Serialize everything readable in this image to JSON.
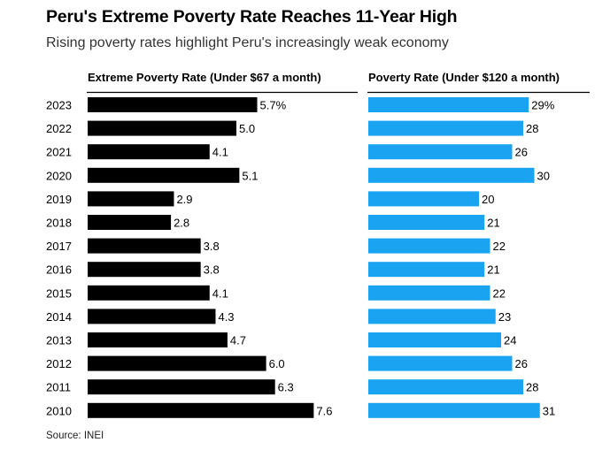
{
  "title": "Peru's Extreme Poverty Rate Reaches 11-Year High",
  "subtitle": "Rising poverty rates highlight Peru's increasingly weak economy",
  "source": "Source: INEI",
  "colors": {
    "extreme": "#000000",
    "poverty": "#1aa3f0",
    "rule": "#000000"
  },
  "chart_data": {
    "type": "bar",
    "orientation": "horizontal",
    "categories": [
      "2023",
      "2022",
      "2021",
      "2020",
      "2019",
      "2018",
      "2017",
      "2016",
      "2015",
      "2014",
      "2013",
      "2012",
      "2011",
      "2010"
    ],
    "series": [
      {
        "name": "Extreme Poverty Rate (Under $67 a month)",
        "values": [
          5.7,
          5.0,
          4.1,
          5.1,
          2.9,
          2.8,
          3.8,
          3.8,
          4.1,
          4.3,
          4.7,
          6.0,
          6.3,
          7.6
        ],
        "labels": [
          "5.7%",
          "5.0",
          "4.1",
          "5.1",
          "2.9",
          "2.8",
          "3.8",
          "3.8",
          "4.1",
          "4.3",
          "4.7",
          "6.0",
          "6.3",
          "7.6"
        ]
      },
      {
        "name": "Poverty Rate (Under $120 a month)",
        "values": [
          29,
          28,
          26,
          30,
          20,
          21,
          22,
          21,
          22,
          23,
          24,
          26,
          28,
          31
        ],
        "labels": [
          "29%",
          "28",
          "26",
          "30",
          "20",
          "21",
          "22",
          "21",
          "22",
          "23",
          "24",
          "26",
          "28",
          "31"
        ]
      }
    ],
    "xlabel": "",
    "ylabel": "",
    "legend": "panel headers"
  }
}
